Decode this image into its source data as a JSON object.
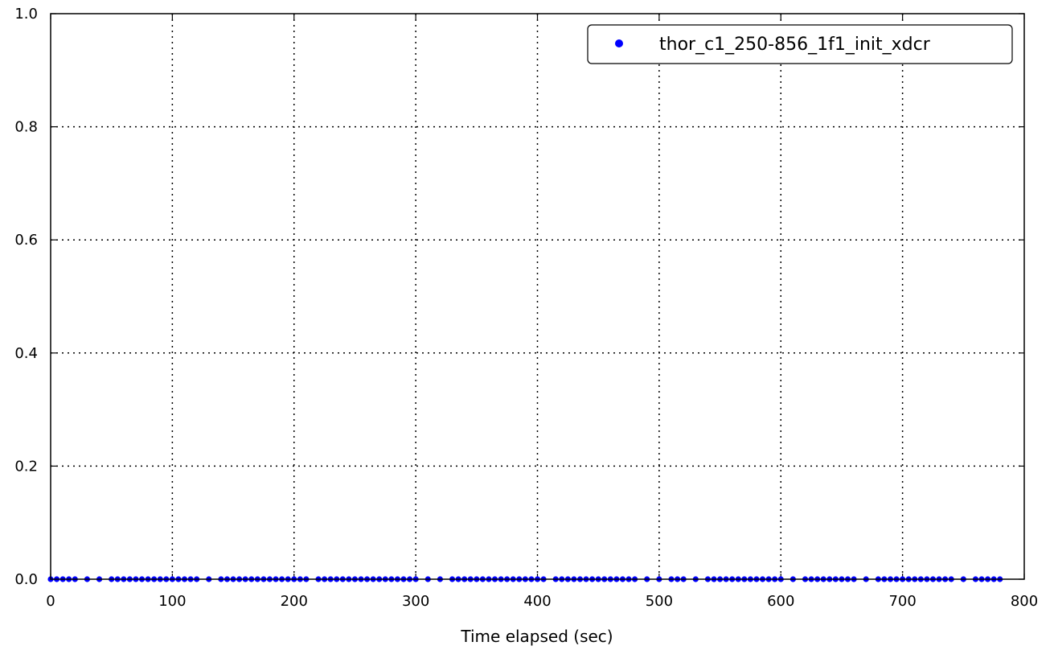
{
  "chart_data": {
    "type": "scatter",
    "title": "",
    "xlabel": "Time elapsed (sec)",
    "ylabel": "",
    "xlim": [
      0,
      800
    ],
    "ylim": [
      0.0,
      1.0
    ],
    "xticks": [
      0,
      100,
      200,
      300,
      400,
      500,
      600,
      700,
      800
    ],
    "xtick_labels": [
      "0",
      "100",
      "200",
      "300",
      "400",
      "500",
      "600",
      "700",
      "800"
    ],
    "yticks": [
      0.0,
      0.2,
      0.4,
      0.6,
      0.8,
      1.0
    ],
    "ytick_labels": [
      "0.0",
      "0.2",
      "0.4",
      "0.6",
      "0.8",
      "1.0"
    ],
    "grid": true,
    "legend_position": "top-right",
    "series": [
      {
        "name": "thor_c1_250-856_1f1_init_xdcr",
        "color": "#0000ff",
        "x": [
          0,
          5,
          10,
          15,
          20,
          30,
          40,
          50,
          55,
          60,
          65,
          70,
          75,
          80,
          85,
          90,
          95,
          100,
          105,
          110,
          115,
          120,
          130,
          140,
          145,
          150,
          155,
          160,
          165,
          170,
          175,
          180,
          185,
          190,
          195,
          200,
          205,
          210,
          220,
          225,
          230,
          235,
          240,
          245,
          250,
          255,
          260,
          265,
          270,
          275,
          280,
          285,
          290,
          295,
          300,
          310,
          320,
          330,
          335,
          340,
          345,
          350,
          355,
          360,
          365,
          370,
          375,
          380,
          385,
          390,
          395,
          400,
          405,
          415,
          420,
          425,
          430,
          435,
          440,
          445,
          450,
          455,
          460,
          465,
          470,
          475,
          480,
          490,
          500,
          510,
          515,
          520,
          530,
          540,
          545,
          550,
          555,
          560,
          565,
          570,
          575,
          580,
          585,
          590,
          595,
          600,
          610,
          620,
          625,
          630,
          635,
          640,
          645,
          650,
          655,
          660,
          670,
          680,
          685,
          690,
          695,
          700,
          705,
          710,
          715,
          720,
          725,
          730,
          735,
          740,
          750,
          760,
          765,
          770,
          775,
          780
        ],
        "y_constant": 0.0
      }
    ]
  }
}
